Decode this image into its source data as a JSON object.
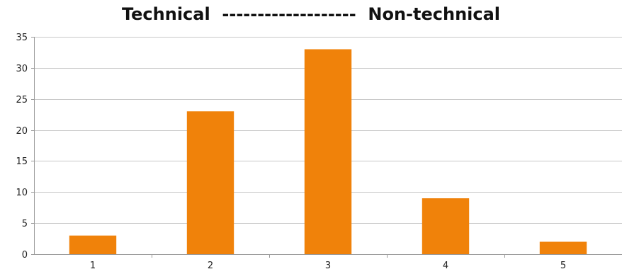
{
  "chart_data": {
    "type": "bar",
    "title": "Technical  -------------------  Non-technical",
    "xlabel": "",
    "ylabel": "",
    "categories": [
      "1",
      "2",
      "3",
      "4",
      "5"
    ],
    "values": [
      3,
      23,
      33,
      9,
      2
    ],
    "ylim": [
      0,
      35
    ],
    "yticks": [
      0,
      5,
      10,
      15,
      20,
      25,
      30,
      35
    ],
    "grid": true,
    "legend": "none",
    "bar_color": "#f0820a"
  }
}
